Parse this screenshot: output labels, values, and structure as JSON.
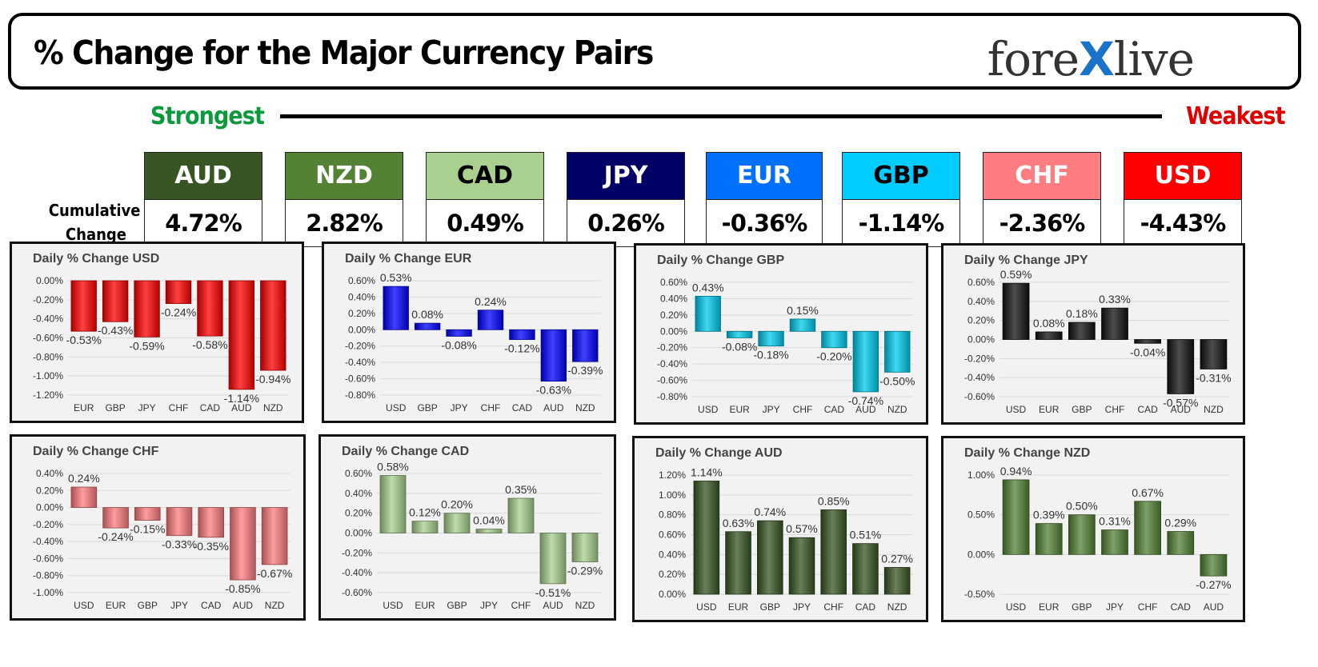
{
  "header": {
    "title": "% Change for the Major Currency Pairs",
    "logo_left": "fore",
    "logo_x": "X",
    "logo_right": "live"
  },
  "scale": {
    "strongest": "Strongest",
    "weakest": "Weakest"
  },
  "cumulative": {
    "label_line1": "Cumulative",
    "label_line2": "Change",
    "items": [
      {
        "code": "AUD",
        "value": "4.72%",
        "bg": "#375623",
        "fg": "#ffffff"
      },
      {
        "code": "NZD",
        "value": "2.82%",
        "bg": "#548235",
        "fg": "#ffffff"
      },
      {
        "code": "CAD",
        "value": "0.49%",
        "bg": "#a9d08e",
        "fg": "#000000"
      },
      {
        "code": "JPY",
        "value": "0.26%",
        "bg": "#000066",
        "fg": "#ffffff"
      },
      {
        "code": "EUR",
        "value": "-0.36%",
        "bg": "#0070ff",
        "fg": "#ffffff"
      },
      {
        "code": "GBP",
        "value": "-1.14%",
        "bg": "#00ccff",
        "fg": "#000000"
      },
      {
        "code": "CHF",
        "value": "-2.36%",
        "bg": "#ff7c80",
        "fg": "#ffffff"
      },
      {
        "code": "USD",
        "value": "-4.43%",
        "bg": "#ff0000",
        "fg": "#ffffff"
      }
    ]
  },
  "chart_data": [
    {
      "type": "bar",
      "title": "Daily % Change USD",
      "color": "#ff0000",
      "categories": [
        "EUR",
        "GBP",
        "JPY",
        "CHF",
        "CAD",
        "AUD",
        "NZD"
      ],
      "values": [
        -0.53,
        -0.43,
        -0.59,
        -0.24,
        -0.58,
        -1.14,
        -0.94
      ],
      "labels": [
        "-0.53%",
        "-0.43%",
        "-0.59%",
        "-0.24%",
        "-0.58%",
        "-1.14%",
        "-0.94%"
      ],
      "yticks": [
        "0.00%",
        "-0.20%",
        "-0.40%",
        "-0.60%",
        "-0.80%",
        "-1.00%",
        "-1.20%"
      ],
      "ylim": [
        -1.2,
        0
      ]
    },
    {
      "type": "bar",
      "title": "Daily % Change EUR",
      "color": "#0000ff",
      "categories": [
        "USD",
        "GBP",
        "JPY",
        "CHF",
        "CAD",
        "AUD",
        "NZD"
      ],
      "values": [
        0.53,
        0.08,
        -0.08,
        0.24,
        -0.12,
        -0.63,
        -0.39
      ],
      "labels": [
        "0.53%",
        "0.08%",
        "-0.08%",
        "0.24%",
        "-0.12%",
        "-0.63%",
        "-0.39%"
      ],
      "yticks": [
        "0.60%",
        "0.40%",
        "0.20%",
        "0.00%",
        "-0.20%",
        "-0.40%",
        "-0.60%",
        "-0.80%"
      ],
      "ylim": [
        -0.8,
        0.6
      ]
    },
    {
      "type": "bar",
      "title": "Daily % Change GBP",
      "color": "#00ccee",
      "categories": [
        "USD",
        "EUR",
        "JPY",
        "CHF",
        "CAD",
        "AUD",
        "NZD"
      ],
      "values": [
        0.43,
        -0.08,
        -0.18,
        0.15,
        -0.2,
        -0.74,
        -0.5
      ],
      "labels": [
        "0.43%",
        "-0.08%",
        "-0.18%",
        "0.15%",
        "-0.20%",
        "-0.74%",
        "-0.50%"
      ],
      "yticks": [
        "0.60%",
        "0.40%",
        "0.20%",
        "0.00%",
        "-0.20%",
        "-0.40%",
        "-0.60%",
        "-0.80%"
      ],
      "ylim": [
        -0.8,
        0.6
      ]
    },
    {
      "type": "bar",
      "title": "Daily % Change JPY",
      "color": "#111111",
      "categories": [
        "USD",
        "EUR",
        "GBP",
        "CHF",
        "CAD",
        "AUD",
        "NZD"
      ],
      "values": [
        0.59,
        0.08,
        0.18,
        0.33,
        -0.04,
        -0.57,
        -0.31
      ],
      "labels": [
        "0.59%",
        "0.08%",
        "0.18%",
        "0.33%",
        "-0.04%",
        "-0.57%",
        "-0.31%"
      ],
      "yticks": [
        "0.60%",
        "0.40%",
        "0.20%",
        "0.00%",
        "-0.20%",
        "-0.40%",
        "-0.60%"
      ],
      "ylim": [
        -0.6,
        0.6
      ]
    },
    {
      "type": "bar",
      "title": "Daily % Change CHF",
      "color": "#ff7c80",
      "categories": [
        "USD",
        "EUR",
        "GBP",
        "JPY",
        "CAD",
        "AUD",
        "NZD"
      ],
      "values": [
        0.24,
        -0.24,
        -0.15,
        -0.33,
        -0.35,
        -0.85,
        -0.67
      ],
      "labels": [
        "0.24%",
        "-0.24%",
        "-0.15%",
        "-0.33%",
        "-0.35%",
        "-0.85%",
        "-0.67%"
      ],
      "yticks": [
        "0.40%",
        "0.20%",
        "0.00%",
        "-0.20%",
        "-0.40%",
        "-0.60%",
        "-0.80%",
        "-1.00%"
      ],
      "ylim": [
        -1.0,
        0.4
      ]
    },
    {
      "type": "bar",
      "title": "Daily % Change CAD",
      "color": "#a9d08e",
      "categories": [
        "USD",
        "EUR",
        "GBP",
        "JPY",
        "CHF",
        "AUD",
        "NZD"
      ],
      "values": [
        0.58,
        0.12,
        0.2,
        0.04,
        0.35,
        -0.51,
        -0.29
      ],
      "labels": [
        "0.58%",
        "0.12%",
        "0.20%",
        "0.04%",
        "0.35%",
        "-0.51%",
        "-0.29%"
      ],
      "yticks": [
        "0.60%",
        "0.40%",
        "0.20%",
        "0.00%",
        "-0.20%",
        "-0.40%",
        "-0.60%"
      ],
      "ylim": [
        -0.6,
        0.6
      ]
    },
    {
      "type": "bar",
      "title": "Daily % Change AUD",
      "color": "#375623",
      "categories": [
        "USD",
        "EUR",
        "GBP",
        "JPY",
        "CHF",
        "CAD",
        "NZD"
      ],
      "values": [
        1.14,
        0.63,
        0.74,
        0.57,
        0.85,
        0.51,
        0.27
      ],
      "labels": [
        "1.14%",
        "0.63%",
        "0.74%",
        "0.57%",
        "0.85%",
        "0.51%",
        "0.27%"
      ],
      "yticks": [
        "1.20%",
        "1.00%",
        "0.80%",
        "0.60%",
        "0.40%",
        "0.20%",
        "0.00%"
      ],
      "ylim": [
        0,
        1.2
      ]
    },
    {
      "type": "bar",
      "title": "Daily % Change NZD",
      "color": "#548235",
      "categories": [
        "USD",
        "EUR",
        "GBP",
        "JPY",
        "CHF",
        "CAD",
        "AUD"
      ],
      "values": [
        0.94,
        0.39,
        0.5,
        0.31,
        0.67,
        0.29,
        -0.27
      ],
      "labels": [
        "0.94%",
        "0.39%",
        "0.50%",
        "0.31%",
        "0.67%",
        "0.29%",
        "-0.27%"
      ],
      "yticks": [
        "1.00%",
        "0.50%",
        "0.00%",
        "-0.50%"
      ],
      "ylim": [
        -0.5,
        1.0
      ]
    }
  ]
}
